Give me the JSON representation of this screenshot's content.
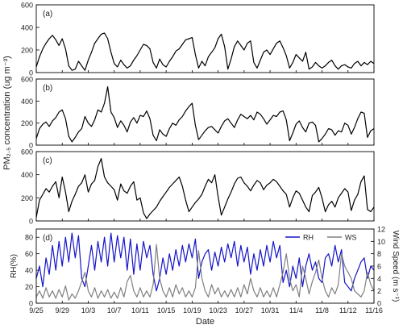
{
  "figure": {
    "shared_ylabel": "PM₂.₅ concentration (ug m⁻³)",
    "xlabel": "Date",
    "x_ticks": [
      "9/25",
      "9/29",
      "10/3",
      "10/7",
      "10/11",
      "10/15",
      "10/19",
      "10/23",
      "10/27",
      "10/31",
      "11/4",
      "11/8",
      "11/12",
      "11/16"
    ]
  },
  "chart_data": [
    {
      "type": "line",
      "panel_label": "(a)",
      "x_domain_days": [
        0,
        52
      ],
      "ylim": [
        0,
        600
      ],
      "y_ticks": [
        0,
        200,
        400,
        600
      ],
      "series": [
        {
          "color": "#000000",
          "x": [
            0,
            0.5,
            1,
            1.5,
            2,
            2.5,
            3,
            3.5,
            4,
            4.5,
            5,
            5.5,
            6,
            6.5,
            7,
            7.5,
            8,
            8.5,
            9,
            9.5,
            10,
            10.5,
            11,
            11.5,
            12,
            12.5,
            13,
            13.5,
            14,
            14.5,
            15,
            15.5,
            16,
            16.5,
            17,
            17.5,
            18,
            18.5,
            19,
            19.5,
            20,
            20.5,
            21,
            21.5,
            22,
            22.5,
            23,
            23.5,
            24,
            24.5,
            25,
            25.5,
            26,
            26.5,
            27,
            27.5,
            28,
            28.5,
            29,
            29.5,
            30,
            30.5,
            31,
            31.5,
            32,
            32.5,
            33,
            33.5,
            34,
            34.5,
            35,
            35.5,
            36,
            36.5,
            37,
            37.5,
            38,
            38.5,
            39,
            39.5,
            40,
            40.5,
            41,
            41.5,
            42,
            42.5,
            43,
            43.5,
            44,
            44.5,
            45,
            45.5,
            46,
            46.5,
            47,
            47.5,
            48,
            48.5,
            49,
            49.5,
            50,
            50.5,
            51,
            51.5,
            52
          ],
          "values": [
            50,
            140,
            210,
            260,
            300,
            330,
            290,
            240,
            300,
            210,
            60,
            20,
            30,
            100,
            60,
            20,
            110,
            180,
            260,
            300,
            340,
            350,
            300,
            180,
            80,
            50,
            110,
            70,
            40,
            60,
            110,
            150,
            200,
            250,
            240,
            210,
            90,
            40,
            120,
            70,
            50,
            100,
            140,
            190,
            210,
            250,
            290,
            300,
            310,
            160,
            40,
            100,
            60,
            140,
            180,
            220,
            300,
            340,
            230,
            30,
            120,
            230,
            280,
            240,
            200,
            260,
            280,
            90,
            40,
            110,
            180,
            200,
            160,
            210,
            260,
            280,
            220,
            150,
            40,
            90,
            160,
            130,
            100,
            180,
            30,
            50,
            90,
            60,
            40,
            60,
            90,
            110,
            60,
            30,
            60,
            70,
            50,
            40,
            80,
            100,
            60,
            90,
            70,
            100,
            80
          ]
        }
      ]
    },
    {
      "type": "line",
      "panel_label": "(b)",
      "x_domain_days": [
        0,
        52
      ],
      "ylim": [
        0,
        600
      ],
      "y_ticks": [
        0,
        200,
        400,
        600
      ],
      "series": [
        {
          "color": "#000000",
          "x": [
            0,
            0.5,
            1,
            1.5,
            2,
            2.5,
            3,
            3.5,
            4,
            4.5,
            5,
            5.5,
            6,
            6.5,
            7,
            7.5,
            8,
            8.5,
            9,
            9.5,
            10,
            10.5,
            11,
            11.5,
            12,
            12.5,
            13,
            13.5,
            14,
            14.5,
            15,
            15.5,
            16,
            16.5,
            17,
            17.5,
            18,
            18.5,
            19,
            19.5,
            20,
            20.5,
            21,
            21.5,
            22,
            22.5,
            23,
            23.5,
            24,
            24.5,
            25,
            25.5,
            26,
            26.5,
            27,
            27.5,
            28,
            28.5,
            29,
            29.5,
            30,
            30.5,
            31,
            31.5,
            32,
            32.5,
            33,
            33.5,
            34,
            34.5,
            35,
            35.5,
            36,
            36.5,
            37,
            37.5,
            38,
            38.5,
            39,
            39.5,
            40,
            40.5,
            41,
            41.5,
            42,
            42.5,
            43,
            43.5,
            44,
            44.5,
            45,
            45.5,
            46,
            46.5,
            47,
            47.5,
            48,
            48.5,
            49,
            49.5,
            50,
            50.5,
            51,
            51.5,
            52
          ],
          "values": [
            60,
            150,
            190,
            210,
            170,
            220,
            250,
            300,
            320,
            240,
            80,
            30,
            70,
            120,
            150,
            260,
            200,
            170,
            230,
            320,
            300,
            380,
            530,
            300,
            250,
            160,
            220,
            180,
            120,
            210,
            250,
            200,
            270,
            260,
            310,
            240,
            90,
            40,
            140,
            100,
            80,
            150,
            200,
            180,
            230,
            260,
            310,
            350,
            380,
            180,
            50,
            90,
            130,
            160,
            170,
            140,
            110,
            170,
            220,
            240,
            200,
            160,
            230,
            280,
            260,
            240,
            270,
            230,
            300,
            280,
            240,
            190,
            230,
            270,
            260,
            300,
            310,
            230,
            40,
            110,
            190,
            220,
            160,
            120,
            200,
            210,
            180,
            30,
            60,
            100,
            150,
            140,
            90,
            130,
            120,
            200,
            180,
            100,
            160,
            240,
            300,
            290,
            70,
            130,
            150
          ]
        }
      ]
    },
    {
      "type": "line",
      "panel_label": "(c)",
      "x_domain_days": [
        0,
        52
      ],
      "ylim": [
        0,
        600
      ],
      "y_ticks": [
        0,
        200,
        400,
        600
      ],
      "series": [
        {
          "color": "#000000",
          "x": [
            0,
            0.5,
            1,
            1.5,
            2,
            2.5,
            3,
            3.5,
            4,
            4.5,
            5,
            5.5,
            6,
            6.5,
            7,
            7.5,
            8,
            8.5,
            9,
            9.5,
            10,
            10.5,
            11,
            11.5,
            12,
            12.5,
            13,
            13.5,
            14,
            14.5,
            15,
            15.5,
            16,
            16.5,
            17,
            17.5,
            18,
            18.5,
            19,
            19.5,
            20,
            20.5,
            21,
            21.5,
            22,
            22.5,
            23,
            23.5,
            24,
            24.5,
            25,
            25.5,
            26,
            26.5,
            27,
            27.5,
            28,
            28.5,
            29,
            29.5,
            30,
            30.5,
            31,
            31.5,
            32,
            32.5,
            33,
            33.5,
            34,
            34.5,
            35,
            35.5,
            36,
            36.5,
            37,
            37.5,
            38,
            38.5,
            39,
            39.5,
            40,
            40.5,
            41,
            41.5,
            42,
            42.5,
            43,
            43.5,
            44,
            44.5,
            45,
            45.5,
            46,
            46.5,
            47,
            47.5,
            48,
            48.5,
            49,
            49.5,
            50,
            50.5,
            51,
            51.5,
            52
          ],
          "values": [
            30,
            180,
            230,
            280,
            250,
            300,
            340,
            200,
            380,
            250,
            80,
            170,
            230,
            300,
            330,
            400,
            250,
            320,
            350,
            470,
            540,
            380,
            330,
            300,
            270,
            180,
            320,
            260,
            240,
            300,
            340,
            180,
            200,
            70,
            20,
            60,
            90,
            120,
            170,
            210,
            250,
            290,
            320,
            350,
            380,
            300,
            180,
            80,
            120,
            160,
            190,
            230,
            300,
            360,
            330,
            400,
            210,
            50,
            120,
            190,
            250,
            320,
            370,
            380,
            330,
            300,
            260,
            310,
            350,
            330,
            270,
            310,
            330,
            360,
            340,
            300,
            260,
            230,
            120,
            200,
            260,
            240,
            180,
            120,
            80,
            220,
            250,
            290,
            200,
            80,
            140,
            170,
            120,
            200,
            240,
            280,
            250,
            90,
            180,
            230,
            340,
            390,
            100,
            80,
            120
          ]
        }
      ]
    },
    {
      "type": "line",
      "panel_label": "(d)",
      "x_domain_days": [
        0,
        52
      ],
      "ylabel": "RH(%)",
      "ylabel_right": "Wind Speed (m s⁻¹)",
      "ylim": [
        0,
        90
      ],
      "y_ticks": [
        0,
        20,
        40,
        60,
        80
      ],
      "ylim_right": [
        0,
        12
      ],
      "y_ticks_right": [
        0,
        2,
        4,
        6,
        8,
        10,
        12
      ],
      "legend_position": "top-right",
      "series": [
        {
          "name": "RH",
          "color": "#1515c8",
          "axis": "left",
          "x": [
            0,
            0.5,
            1,
            1.5,
            2,
            2.5,
            3,
            3.5,
            4,
            4.5,
            5,
            5.5,
            6,
            6.5,
            7,
            7.5,
            8,
            8.5,
            9,
            9.5,
            10,
            10.5,
            11,
            11.5,
            12,
            12.5,
            13,
            13.5,
            14,
            14.5,
            15,
            15.5,
            16,
            16.5,
            17,
            17.5,
            18,
            18.5,
            19,
            19.5,
            20,
            20.5,
            21,
            21.5,
            22,
            22.5,
            23,
            23.5,
            24,
            24.5,
            25,
            25.5,
            26,
            26.5,
            27,
            27.5,
            28,
            28.5,
            29,
            29.5,
            30,
            30.5,
            31,
            31.5,
            32,
            32.5,
            33,
            33.5,
            34,
            34.5,
            35,
            35.5,
            36,
            36.5,
            37,
            37.5,
            38,
            38.5,
            39,
            39.5,
            40,
            40.5,
            41,
            41.5,
            42,
            42.5,
            43,
            43.5,
            44,
            44.5,
            45,
            45.5,
            46,
            46.5,
            47,
            47.5,
            48,
            48.5,
            49,
            49.5,
            50,
            50.5,
            51,
            51.5,
            52
          ],
          "values": [
            30,
            45,
            20,
            55,
            35,
            70,
            40,
            75,
            45,
            80,
            50,
            85,
            55,
            82,
            30,
            20,
            45,
            70,
            40,
            75,
            50,
            80,
            45,
            85,
            50,
            82,
            55,
            80,
            40,
            78,
            35,
            72,
            40,
            75,
            55,
            70,
            35,
            15,
            30,
            55,
            35,
            60,
            40,
            65,
            45,
            70,
            50,
            72,
            55,
            78,
            30,
            50,
            60,
            65,
            40,
            62,
            45,
            68,
            50,
            72,
            55,
            75,
            45,
            70,
            50,
            68,
            35,
            60,
            40,
            65,
            45,
            70,
            50,
            75,
            55,
            70,
            25,
            40,
            20,
            45,
            30,
            55,
            20,
            45,
            60,
            40,
            50,
            30,
            25,
            55,
            60,
            45,
            70,
            50,
            65,
            25,
            20,
            15,
            30,
            40,
            50,
            55,
            30,
            45,
            40
          ]
        },
        {
          "name": "WS",
          "color": "#808080",
          "axis": "right",
          "x": [
            0,
            0.5,
            1,
            1.5,
            2,
            2.5,
            3,
            3.5,
            4,
            4.5,
            5,
            5.5,
            6,
            6.5,
            7,
            7.5,
            8,
            8.5,
            9,
            9.5,
            10,
            10.5,
            11,
            11.5,
            12,
            12.5,
            13,
            13.5,
            14,
            14.5,
            15,
            15.5,
            16,
            16.5,
            17,
            17.5,
            18,
            18.5,
            19,
            19.5,
            20,
            20.5,
            21,
            21.5,
            22,
            22.5,
            23,
            23.5,
            24,
            24.5,
            25,
            25.5,
            26,
            26.5,
            27,
            27.5,
            28,
            28.5,
            29,
            29.5,
            30,
            30.5,
            31,
            31.5,
            32,
            32.5,
            33,
            33.5,
            34,
            34.5,
            35,
            35.5,
            36,
            36.5,
            37,
            37.5,
            38,
            38.5,
            39,
            39.5,
            40,
            40.5,
            41,
            41.5,
            42,
            42.5,
            43,
            43.5,
            44,
            44.5,
            45,
            45.5,
            46,
            46.5,
            47,
            47.5,
            48,
            48.5,
            49,
            49.5,
            50,
            50.5,
            51,
            51.5,
            52
          ],
          "values": [
            1,
            2,
            0.8,
            2.5,
            1,
            2,
            0.8,
            2.2,
            1,
            2.8,
            0.5,
            1.5,
            0.8,
            2,
            3.5,
            5,
            2,
            1,
            2.5,
            0.8,
            2,
            1,
            2.2,
            0.8,
            1.8,
            0.8,
            2.5,
            1,
            3.5,
            4.5,
            2,
            1,
            2.5,
            1,
            2,
            1,
            3,
            9.5,
            4,
            2,
            1,
            2.5,
            1,
            3,
            1.5,
            2.5,
            1,
            2,
            1,
            2.5,
            8.5,
            4,
            2,
            1,
            3,
            1.5,
            2.5,
            1,
            2,
            1,
            2.2,
            1,
            2.5,
            1,
            3,
            1.5,
            4,
            2,
            1,
            2.5,
            1,
            2,
            1,
            2.5,
            1,
            3,
            5,
            8,
            4,
            2,
            3,
            1,
            6,
            4,
            1.5,
            3.5,
            5,
            7,
            4,
            2,
            1,
            2.5,
            1.5,
            3,
            8,
            6,
            5,
            4,
            2,
            1.5,
            1,
            2,
            5,
            3,
            2
          ]
        }
      ]
    }
  ]
}
